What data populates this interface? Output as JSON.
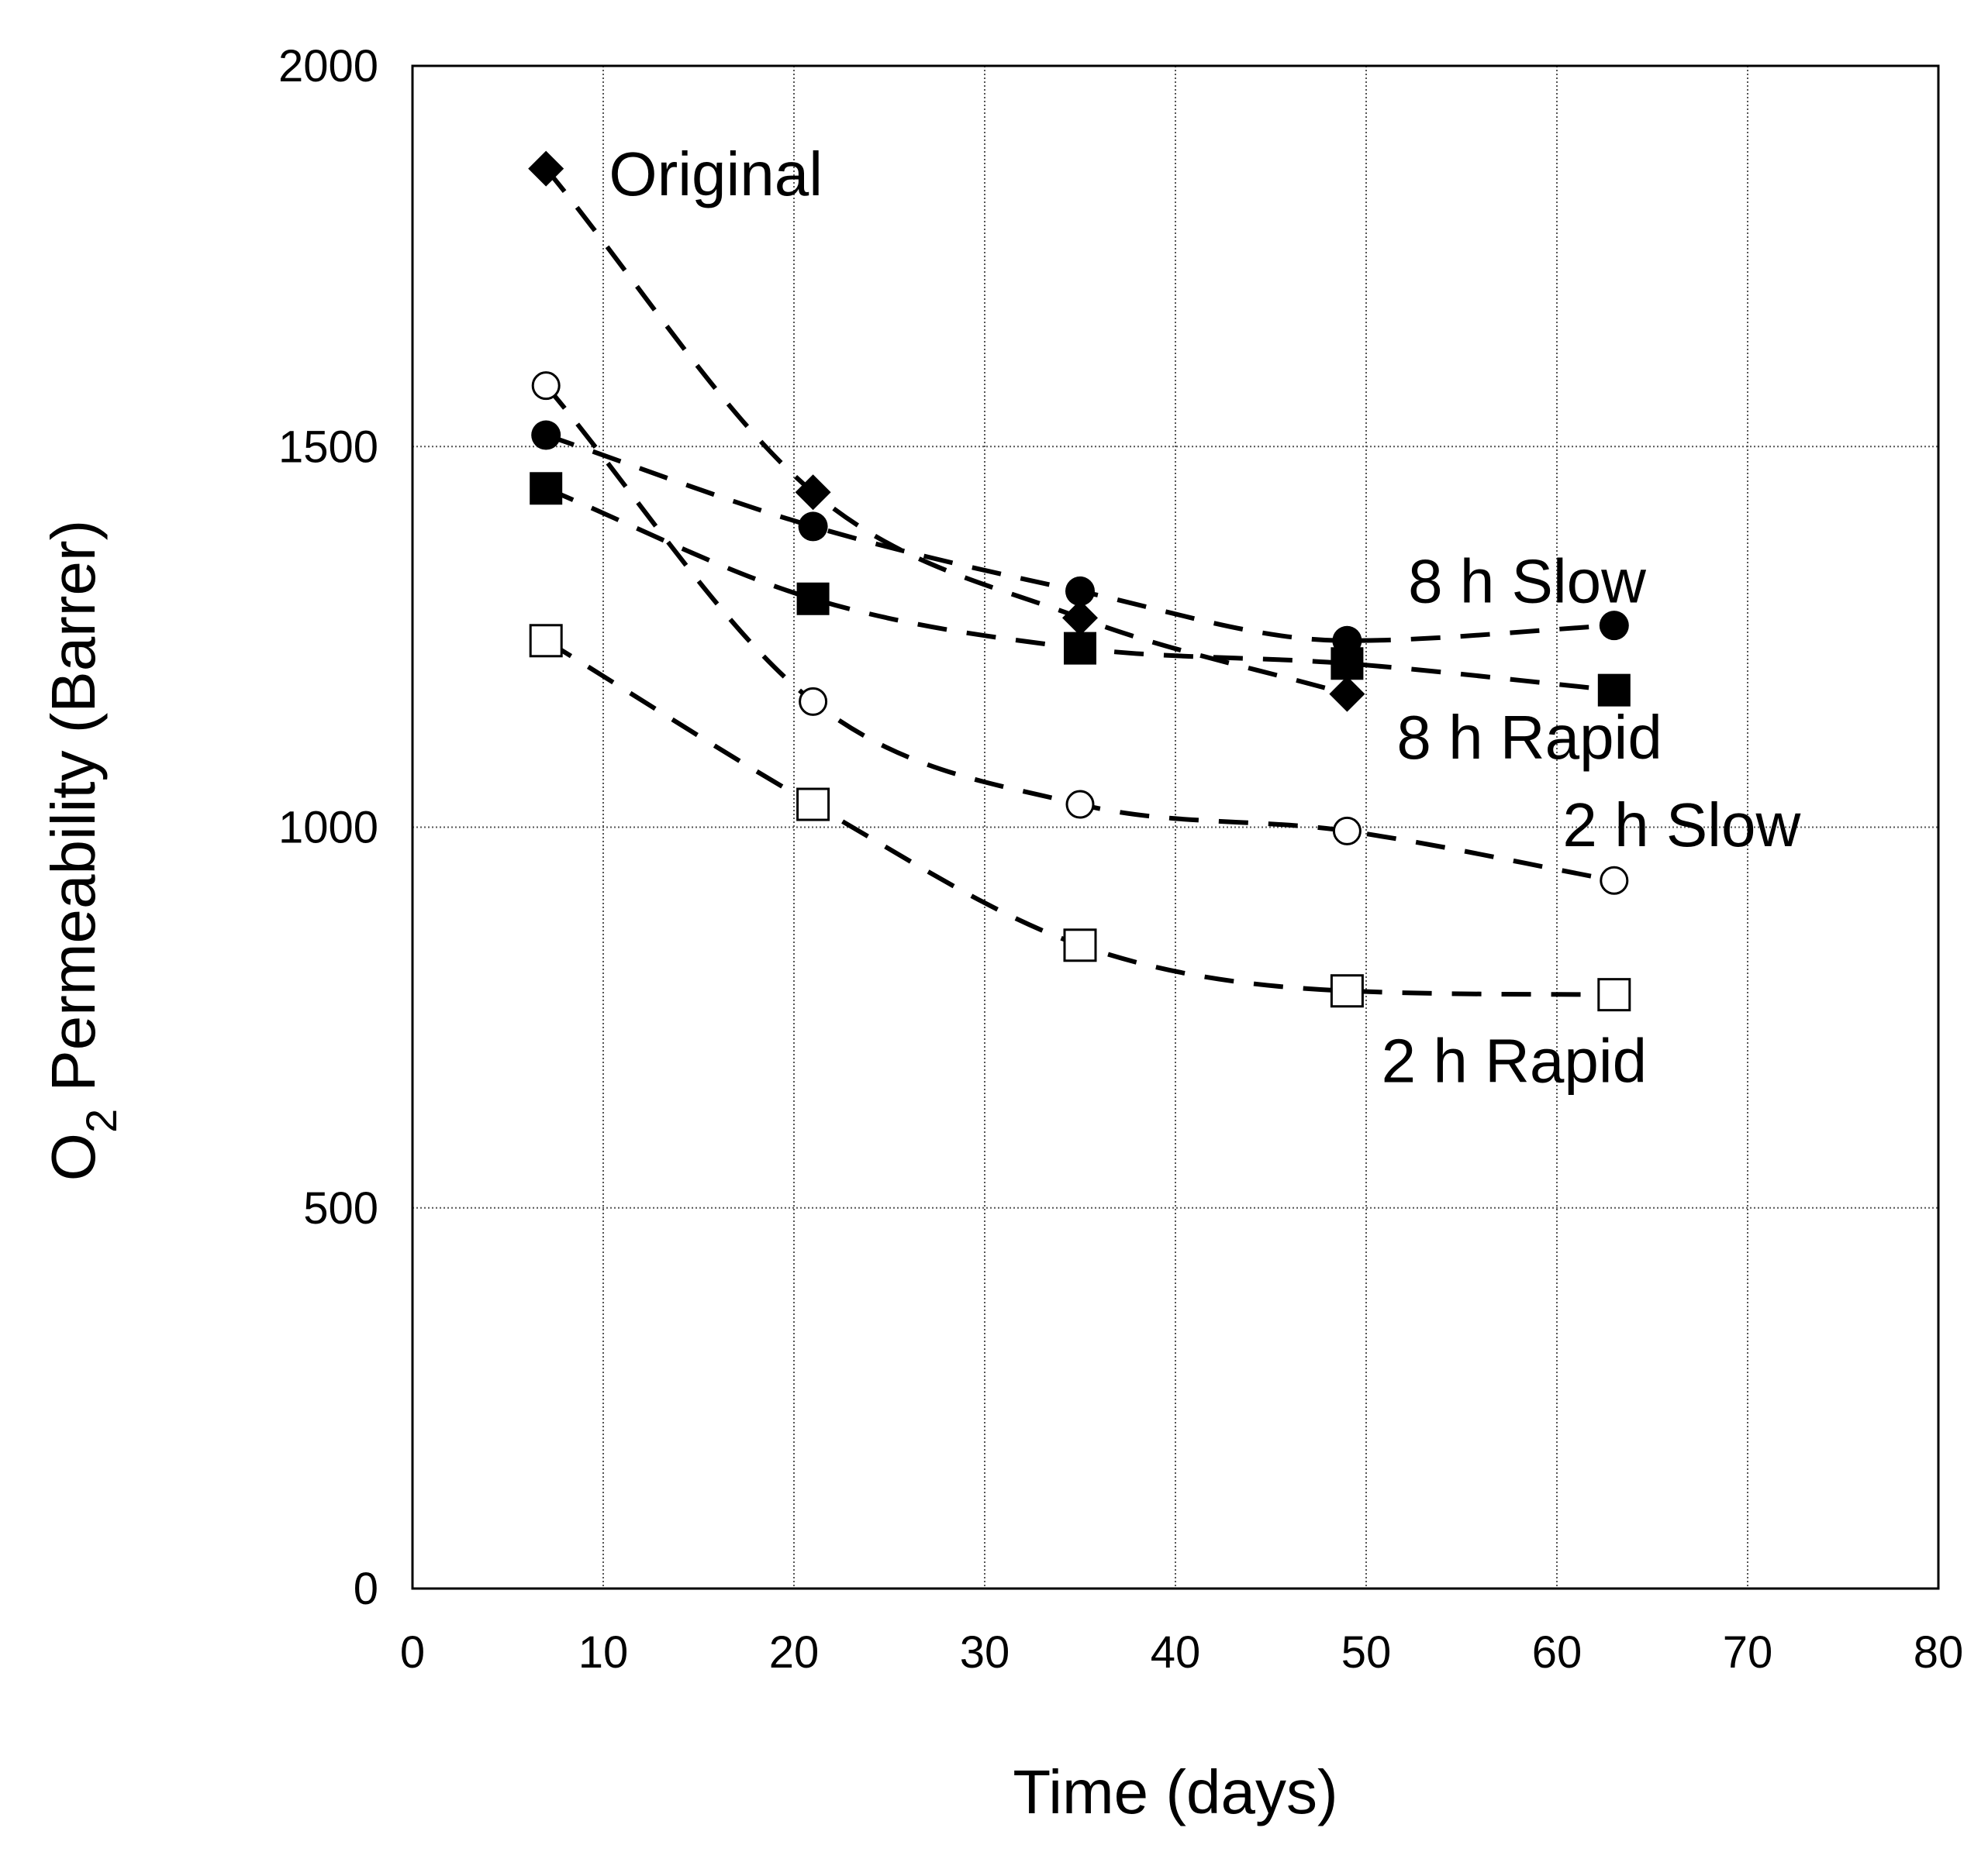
{
  "chart_data": {
    "type": "scatter",
    "title": "",
    "xlabel": "Time (days)",
    "ylabel_main": "O",
    "ylabel_sub": "2",
    "ylabel_rest": " Permeability (Barrer)",
    "xlim": [
      0,
      80
    ],
    "ylim": [
      0,
      2000
    ],
    "xticks": [
      0,
      10,
      20,
      30,
      40,
      50,
      60,
      70,
      80
    ],
    "yticks": [
      0,
      500,
      1000,
      1500,
      2000
    ],
    "grid": true,
    "series": [
      {
        "name": "Original",
        "marker": "diamond-filled",
        "x": [
          7,
          21,
          35,
          49
        ],
        "y": [
          1865,
          1440,
          1275,
          1175
        ]
      },
      {
        "name": "8 h Slow",
        "marker": "circle-filled",
        "x": [
          7,
          21,
          35,
          49,
          63
        ],
        "y": [
          1515,
          1395,
          1310,
          1245,
          1265
        ]
      },
      {
        "name": "8 h Rapid",
        "marker": "square-filled",
        "x": [
          7,
          21,
          35,
          49,
          63
        ],
        "y": [
          1445,
          1300,
          1235,
          1215,
          1180
        ]
      },
      {
        "name": "2 h Slow",
        "marker": "circle-open",
        "x": [
          7,
          21,
          35,
          49,
          63
        ],
        "y": [
          1580,
          1165,
          1030,
          995,
          930
        ]
      },
      {
        "name": "2 h Rapid",
        "marker": "square-open",
        "x": [
          7,
          21,
          35,
          49,
          63
        ],
        "y": [
          1245,
          1030,
          845,
          785,
          780
        ]
      }
    ],
    "annotations": [
      {
        "text": "Original",
        "series": "Original",
        "x": 10.3,
        "y": 1830
      },
      {
        "text": "8 h Slow",
        "series": "8 h Slow",
        "x": 52.2,
        "y": 1295
      },
      {
        "text": "8 h Rapid",
        "series": "8 h Rapid",
        "x": 51.6,
        "y": 1090
      },
      {
        "text": "2 h Slow",
        "series": "2 h Slow",
        "x": 60.3,
        "y": 975
      },
      {
        "text": "2 h Rapid",
        "series": "2 h Rapid",
        "x": 50.8,
        "y": 665
      }
    ]
  }
}
